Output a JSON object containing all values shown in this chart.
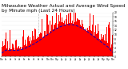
{
  "title": "Milwaukee Weather Actual and Average Wind Speed by Minute mph (Last 24 Hours)",
  "title_fontsize": 4.2,
  "ylim": [
    0,
    20
  ],
  "yticks": [
    0,
    2,
    4,
    6,
    8,
    10,
    12,
    14,
    16,
    18,
    20
  ],
  "n_points": 1440,
  "background_color": "#ffffff",
  "bar_color": "#ff0000",
  "line_color": "#0000cc",
  "vline_color": "#bbbbbb",
  "vline_positions": [
    480,
    960
  ],
  "random_seed": 7
}
